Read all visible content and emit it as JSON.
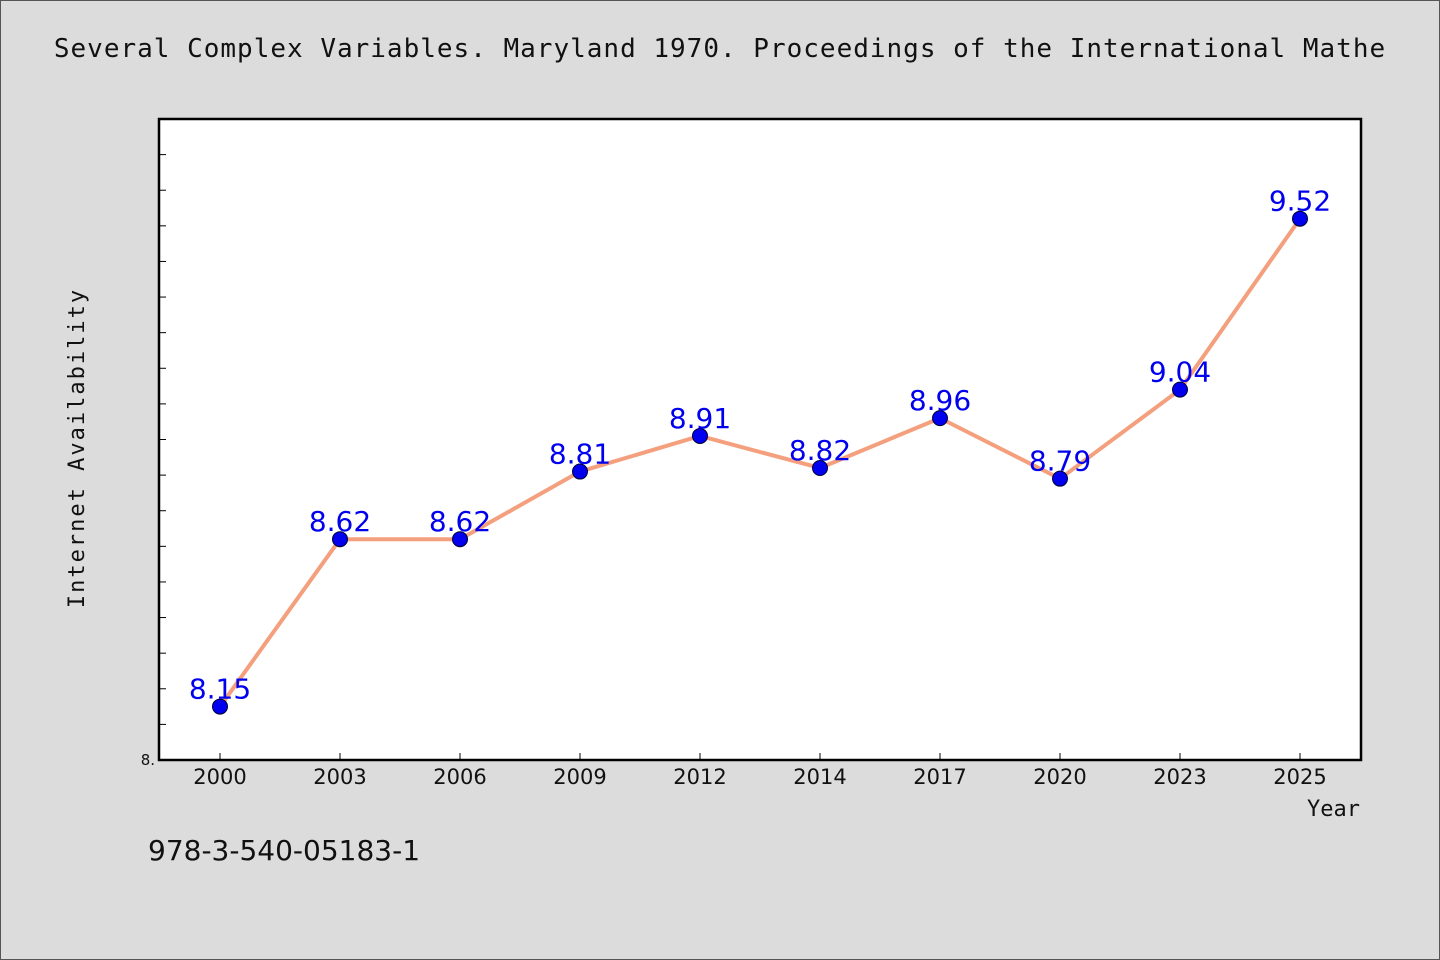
{
  "chart_data": {
    "type": "line",
    "title": "Several Complex Variables. Maryland 1970. Proceedings of the International Mathe",
    "xlabel": "Year",
    "ylabel": "Internet Availability",
    "categories": [
      "2000",
      "2003",
      "2006",
      "2009",
      "2012",
      "2014",
      "2017",
      "2020",
      "2023",
      "2025"
    ],
    "series": [
      {
        "values": [
          8.15,
          8.62,
          8.62,
          8.81,
          8.91,
          8.82,
          8.96,
          8.79,
          9.04,
          9.52
        ]
      }
    ],
    "value_labels": [
      "8.15",
      "8.62",
      "8.62",
      "8.81",
      "8.91",
      "8.82",
      "8.96",
      "8.79",
      "9.04",
      "9.52"
    ],
    "ylim": [
      8.0,
      9.8
    ],
    "y_tick_labels": [
      "8."
    ],
    "grid": false,
    "line_color": "#f4a07e",
    "marker_color": "#0000ee",
    "label_color": "#0000ee"
  },
  "footer_text": "978-3-540-05183-1"
}
